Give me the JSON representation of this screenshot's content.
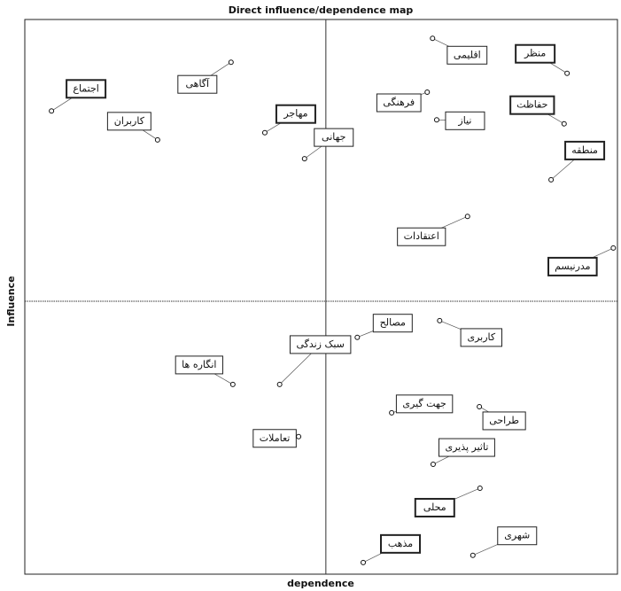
{
  "chart_data": {
    "type": "scatter",
    "title": "Direct influence/dependence map",
    "x_label": "dependence",
    "y_label": "Influence",
    "xlim": [
      0,
      100
    ],
    "ylim": [
      0,
      100
    ],
    "reference_lines": {
      "x": 50.8,
      "y": 49.2
    },
    "labels": [
      "منظر",
      "اقلیمی",
      "حفاظت",
      "فرهنگی",
      "نیاز",
      "منطقه",
      "اجتماع",
      "آگاهی",
      "کاربران",
      "مهاجر",
      "جهانی",
      "اعتقادات",
      "مدرنیسم",
      "مصالح",
      "کاربری",
      "انگاره ها",
      "سبک زندگی",
      "جهت گیری",
      "طراحی",
      "تعاملات",
      "تاثیر پذیری",
      "محلی",
      "شهری",
      "مذهب"
    ],
    "x": [
      91.5,
      68.8,
      91.0,
      67.9,
      69.5,
      88.8,
      4.5,
      34.8,
      22.4,
      40.5,
      47.2,
      74.7,
      99.3,
      56.1,
      70.0,
      35.1,
      43.0,
      61.9,
      76.7,
      46.2,
      68.9,
      76.8,
      75.6,
      57.1
    ],
    "y": [
      90.3,
      96.6,
      81.2,
      86.9,
      81.9,
      71.1,
      83.5,
      92.3,
      78.3,
      79.6,
      74.9,
      64.5,
      58.8,
      42.7,
      45.7,
      34.2,
      34.2,
      29.1,
      30.2,
      24.8,
      19.8,
      15.5,
      3.4,
      2.1
    ]
  }
}
